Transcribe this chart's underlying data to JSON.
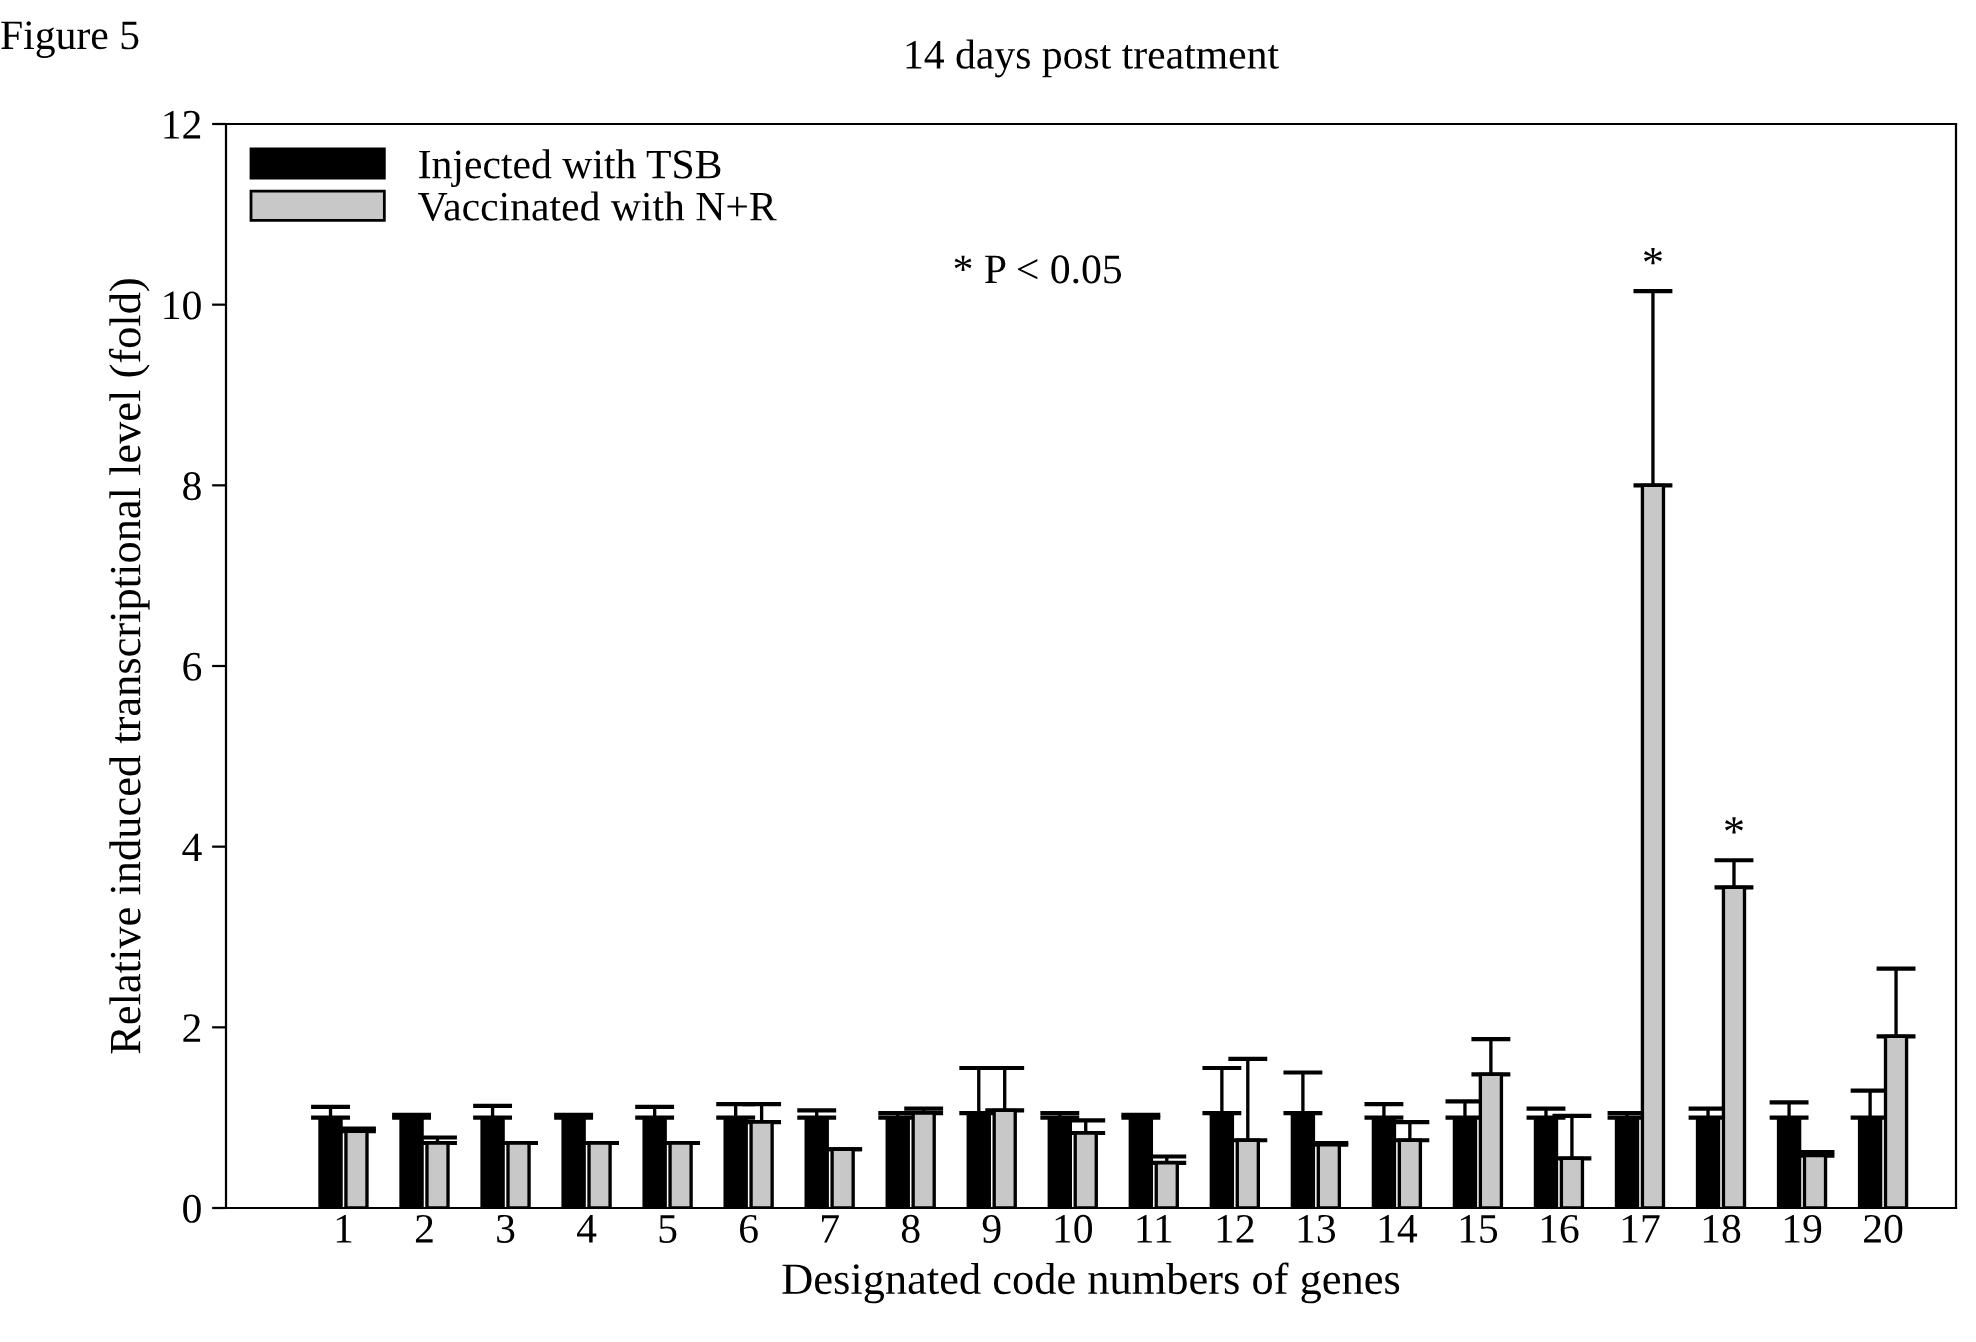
{
  "chart_data": {
    "type": "bar",
    "title": "14 days post treatment",
    "xlabel": "Designated code numbers of genes",
    "ylabel": "Relative induced transcriptional level (fold)",
    "categories": [
      "1",
      "2",
      "3",
      "4",
      "5",
      "6",
      "7",
      "8",
      "9",
      "10",
      "11",
      "12",
      "13",
      "14",
      "15",
      "16",
      "17",
      "18",
      "19",
      "20"
    ],
    "series": [
      {
        "name": "Injected with TSB",
        "color": "#000000",
        "values": [
          1.0,
          1.0,
          1.0,
          1.0,
          1.0,
          1.0,
          1.0,
          1.0,
          1.05,
          1.0,
          1.0,
          1.05,
          1.05,
          1.0,
          1.0,
          1.0,
          1.0,
          1.0,
          1.0,
          1.0
        ],
        "errors": [
          [
            1.0,
            1.12
          ],
          [
            1.0,
            1.03
          ],
          [
            1.0,
            1.13
          ],
          [
            1.0,
            1.03
          ],
          [
            1.0,
            1.12
          ],
          [
            1.0,
            1.15
          ],
          [
            1.0,
            1.08
          ],
          [
            1.0,
            1.05
          ],
          [
            1.05,
            1.55
          ],
          [
            1.0,
            1.05
          ],
          [
            1.0,
            1.03
          ],
          [
            1.05,
            1.55
          ],
          [
            1.05,
            1.5
          ],
          [
            1.0,
            1.15
          ],
          [
            1.0,
            1.18
          ],
          [
            1.0,
            1.1
          ],
          [
            1.0,
            1.05
          ],
          [
            1.0,
            1.1
          ],
          [
            1.0,
            1.17
          ],
          [
            1.0,
            1.3
          ]
        ]
      },
      {
        "name": "Vaccinated with N+R",
        "color": "#c8c8c8",
        "values": [
          0.85,
          0.72,
          0.72,
          0.72,
          0.72,
          0.95,
          0.65,
          1.05,
          1.08,
          0.83,
          0.5,
          0.75,
          0.7,
          0.75,
          1.48,
          0.55,
          8.0,
          3.55,
          0.58,
          1.9
        ],
        "errors": [
          [
            0.85,
            0.88
          ],
          [
            0.72,
            0.78
          ],
          [
            0.72,
            0.72
          ],
          [
            0.72,
            0.72
          ],
          [
            0.72,
            0.72
          ],
          [
            0.95,
            1.15
          ],
          [
            0.65,
            0.65
          ],
          [
            1.05,
            1.1
          ],
          [
            1.08,
            1.55
          ],
          [
            0.83,
            0.97
          ],
          [
            0.5,
            0.57
          ],
          [
            0.75,
            1.65
          ],
          [
            0.7,
            0.72
          ],
          [
            0.75,
            0.95
          ],
          [
            1.48,
            1.87
          ],
          [
            0.55,
            1.02
          ],
          [
            8.0,
            10.15
          ],
          [
            3.55,
            3.85
          ],
          [
            0.58,
            0.62
          ],
          [
            1.9,
            2.65
          ]
        ]
      }
    ],
    "ylim": [
      0,
      12
    ],
    "yticks": [
      0,
      2,
      4,
      6,
      8,
      10,
      12
    ],
    "legend": "top left",
    "grid": false,
    "annotations": [
      "Figure 5",
      "* P < 0.05",
      {
        "text": "*",
        "x": "17",
        "y": 10.2
      },
      {
        "text": "*",
        "x": "18",
        "y": 3.9
      }
    ]
  }
}
